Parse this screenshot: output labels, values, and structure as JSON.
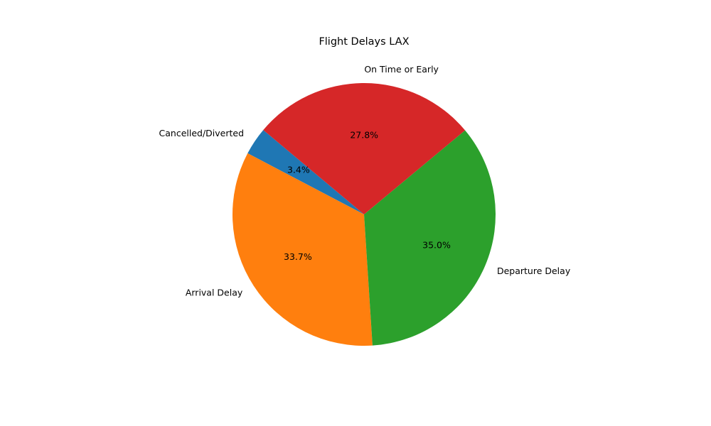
{
  "chart_data": {
    "type": "pie",
    "title": "Flight Delays LAX",
    "start_angle_deg": 140,
    "direction": "counterclockwise",
    "slices": [
      {
        "label": "Cancelled/Diverted",
        "value": 3.4,
        "pct_text": "3.4%",
        "color": "#1f77b4"
      },
      {
        "label": "Arrival Delay",
        "value": 33.7,
        "pct_text": "33.7%",
        "color": "#ff7f0e"
      },
      {
        "label": "Departure Delay",
        "value": 35.0,
        "pct_text": "35.0%",
        "color": "#2ca02c"
      },
      {
        "label": "On Time or Early",
        "value": 27.8,
        "pct_text": "27.8%",
        "color": "#d62728"
      }
    ]
  }
}
